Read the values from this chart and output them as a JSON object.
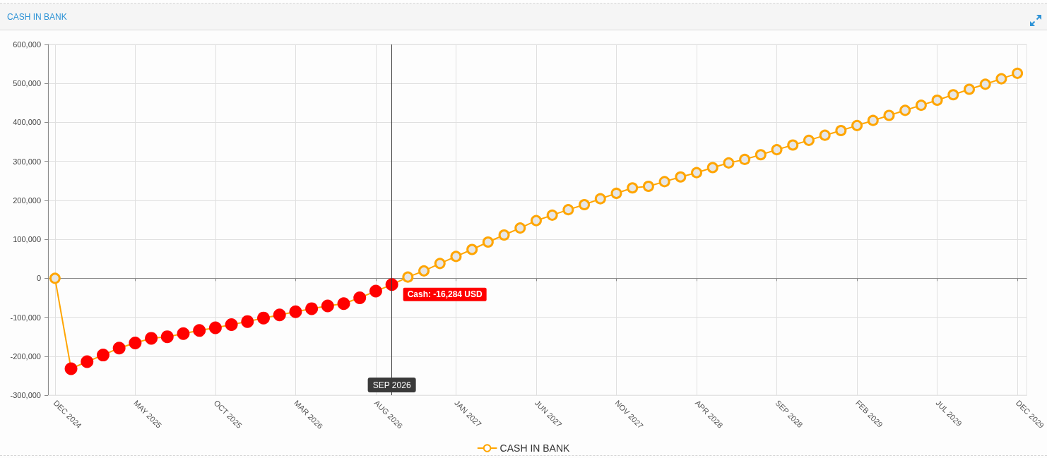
{
  "chart_data": {
    "type": "line",
    "title": "CASH IN BANK",
    "x": [
      "2024-12",
      "2025-01",
      "2025-02",
      "2025-03",
      "2025-04",
      "2025-05",
      "2025-06",
      "2025-07",
      "2025-08",
      "2025-09",
      "2025-10",
      "2025-11",
      "2025-12",
      "2026-01",
      "2026-02",
      "2026-03",
      "2026-04",
      "2026-05",
      "2026-06",
      "2026-07",
      "2026-08",
      "2026-09",
      "2026-10",
      "2026-11",
      "2026-12",
      "2027-01",
      "2027-02",
      "2027-03",
      "2027-04",
      "2027-05",
      "2027-06",
      "2027-07",
      "2027-08",
      "2027-09",
      "2027-10",
      "2027-11",
      "2027-12",
      "2028-01",
      "2028-02",
      "2028-03",
      "2028-04",
      "2028-05",
      "2028-06",
      "2028-07",
      "2028-08",
      "2028-09",
      "2028-10",
      "2028-11",
      "2028-12",
      "2029-01",
      "2029-02",
      "2029-03",
      "2029-04",
      "2029-05",
      "2029-06",
      "2029-07",
      "2029-08",
      "2029-09",
      "2029-10",
      "2029-11",
      "2029-12"
    ],
    "series": [
      {
        "name": "CASH IN BANK",
        "color": "#ffa500",
        "colors": [
          "#ffa500",
          "#ff0000",
          "#ff0000",
          "#ff0000",
          "#ff0000",
          "#ff0000",
          "#ff0000",
          "#ff0000",
          "#ff0000",
          "#ff0000",
          "#ff0000",
          "#ff0000",
          "#ff0000",
          "#ff0000",
          "#ff0000",
          "#ff0000",
          "#ff0000",
          "#ff0000",
          "#ff0000",
          "#ff0000",
          "#ff0000",
          "#ff0000",
          "#ffa500",
          "#ffa500",
          "#ffa500",
          "#ffa500",
          "#ffa500",
          "#ffa500",
          "#ffa500",
          "#ffa500",
          "#ffa500",
          "#ffa500",
          "#ffa500",
          "#ffa500",
          "#ffa500",
          "#ffa500",
          "#ffa500",
          "#ffa500",
          "#ffa500",
          "#ffa500",
          "#ffa500",
          "#ffa500",
          "#ffa500",
          "#ffa500",
          "#ffa500",
          "#ffa500",
          "#ffa500",
          "#ffa500",
          "#ffa500",
          "#ffa500",
          "#ffa500",
          "#ffa500",
          "#ffa500",
          "#ffa500",
          "#ffa500",
          "#ffa500",
          "#ffa500",
          "#ffa500",
          "#ffa500",
          "#ffa500",
          "#ffa500"
        ],
        "values": [
          0,
          -232000,
          -214000,
          -197000,
          -179000,
          -166000,
          -154000,
          -150000,
          -142000,
          -134000,
          -127000,
          -119000,
          -111000,
          -102000,
          -94000,
          -86000,
          -78000,
          -71000,
          -65000,
          -50000,
          -33000,
          -16284,
          3000,
          19000,
          38000,
          56000,
          74000,
          93000,
          111000,
          129000,
          148000,
          162000,
          176000,
          189000,
          204000,
          218000,
          232000,
          236000,
          248000,
          260000,
          271000,
          284000,
          296000,
          305000,
          317000,
          330000,
          342000,
          354000,
          367000,
          379000,
          392000,
          405000,
          418000,
          431000,
          444000,
          457000,
          471000,
          485000,
          498000,
          512000,
          526000
        ],
        "value_labels": [
          null,
          null,
          null,
          null,
          null,
          null,
          null,
          null,
          null,
          null,
          null,
          null,
          null,
          null,
          null,
          null,
          null,
          null,
          null,
          null,
          null,
          "Cash: -16,284 USD",
          null,
          null,
          null,
          null,
          null,
          null,
          null,
          null,
          null,
          null,
          null,
          null,
          null,
          null,
          null,
          null,
          null,
          null,
          null,
          null,
          null,
          null,
          null,
          null,
          null,
          null,
          null,
          null,
          null,
          null,
          null,
          null,
          null,
          null,
          null,
          null,
          null,
          null,
          null
        ]
      }
    ],
    "xlim": [
      "2024-11-18",
      "2029-12-19"
    ],
    "xticks": [
      {
        "value": "2024-12",
        "label": "DEC 2024"
      },
      {
        "value": "2025-05",
        "label": "MAY 2025"
      },
      {
        "value": "2025-10",
        "label": "OCT 2025"
      },
      {
        "value": "2026-03",
        "label": "MAR 2026"
      },
      {
        "value": "2026-08",
        "label": "AUG 2026"
      },
      {
        "value": "2027-01",
        "label": "JAN 2027"
      },
      {
        "value": "2027-06",
        "label": "JUN 2027"
      },
      {
        "value": "2027-11",
        "label": "NOV 2027"
      },
      {
        "value": "2028-04",
        "label": "APR 2028"
      },
      {
        "value": "2028-09",
        "label": "SEP 2028"
      },
      {
        "value": "2029-02",
        "label": "FEB 2029"
      },
      {
        "value": "2029-07",
        "label": "JUL 2029"
      },
      {
        "value": "2029-12",
        "label": "DEC 2029"
      }
    ],
    "ylim": [
      -300000,
      600000
    ],
    "yticks": [
      {
        "value": -300000,
        "label": "-300,000"
      },
      {
        "value": -200000,
        "label": "-200,000"
      },
      {
        "value": -100000,
        "label": "-100,000"
      },
      0,
      {
        "value": 100000,
        "label": "100,000"
      },
      {
        "value": 200000,
        "label": "200,000"
      },
      {
        "value": 300000,
        "label": "300,000"
      },
      {
        "value": 400000,
        "label": "400,000"
      },
      {
        "value": 500000,
        "label": "500,000"
      },
      {
        "value": 600000,
        "label": "600,000"
      }
    ],
    "grid": true,
    "legend": "bottom",
    "marker": "circle",
    "line_style": "solid",
    "ref_lines": [
      {
        "axis": "x",
        "value": "2026-09",
        "label": "SEP 2026",
        "color": "#3a3a3a"
      }
    ]
  }
}
